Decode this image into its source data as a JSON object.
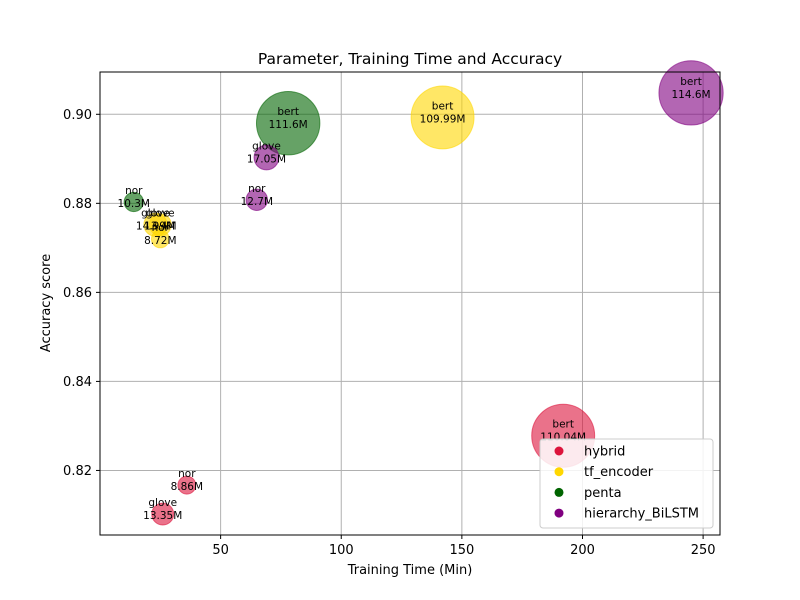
{
  "chart_data": {
    "type": "scatter",
    "title": "Parameter, Training Time and Accuracy",
    "xlabel": "Training Time (Min)",
    "ylabel": "Accuracy score",
    "xlim": [
      0,
      257
    ],
    "ylim": [
      0.8055,
      0.9095
    ],
    "xticks": [
      50,
      100,
      150,
      200,
      250
    ],
    "yticks": [
      0.82,
      0.84,
      0.86,
      0.88,
      0.9
    ],
    "ytick_labels": [
      "0.82",
      "0.84",
      "0.86",
      "0.88",
      "0.90"
    ],
    "grid": true,
    "legend_position": "bottom-right",
    "series": [
      {
        "name": "hybrid",
        "color": "#DC143C",
        "points": [
          {
            "x": 192,
            "y": 0.8278,
            "size_m": 110.04,
            "label": "bert",
            "params": "110.04M"
          },
          {
            "x": 36,
            "y": 0.8167,
            "size_m": 8.86,
            "label": "nor",
            "params": "8.86M"
          },
          {
            "x": 26,
            "y": 0.8102,
            "size_m": 13.35,
            "label": "glove",
            "params": "13.35M"
          }
        ]
      },
      {
        "name": "tf_encoder",
        "color": "#FFD700",
        "points": [
          {
            "x": 142,
            "y": 0.8993,
            "size_m": 109.99,
            "label": "bert",
            "params": "109.99M"
          },
          {
            "x": 25,
            "y": 0.8752,
            "size_m": 13.4,
            "label": "glove",
            "params": "13.4M"
          },
          {
            "x": 23,
            "y": 0.8752,
            "size_m": 14.99,
            "label": "glove",
            "params": "14.99M"
          },
          {
            "x": 25,
            "y": 0.872,
            "size_m": 8.72,
            "label": "nor",
            "params": "8.72M"
          }
        ]
      },
      {
        "name": "penta",
        "color": "#006400",
        "points": [
          {
            "x": 78,
            "y": 0.898,
            "size_m": 111.6,
            "label": "bert",
            "params": "111.6M"
          },
          {
            "x": 14,
            "y": 0.8803,
            "size_m": 10.3,
            "label": "nor",
            "params": "10.3M"
          }
        ]
      },
      {
        "name": "hierarchy_BiLSTM",
        "color": "#800080",
        "points": [
          {
            "x": 245,
            "y": 0.9048,
            "size_m": 114.6,
            "label": "bert",
            "params": "114.6M"
          },
          {
            "x": 69,
            "y": 0.8903,
            "size_m": 17.05,
            "label": "glove",
            "params": "17.05M"
          },
          {
            "x": 65,
            "y": 0.8808,
            "size_m": 12.7,
            "label": "nor",
            "params": "12.7M"
          }
        ]
      }
    ]
  }
}
